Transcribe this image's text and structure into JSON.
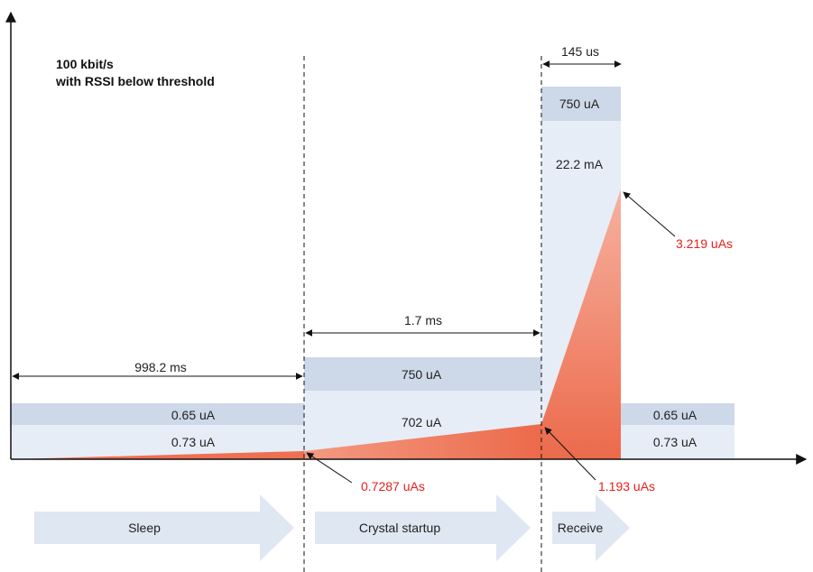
{
  "title": {
    "line1": "100 kbit/s",
    "line2": "with RSSI below threshold"
  },
  "durations": {
    "sleep": "998.2 ms",
    "crystal_startup": "1.7 ms",
    "receive": "145 us"
  },
  "currents": {
    "sleep_top": "0.65 uA",
    "sleep_bottom": "0.73 uA",
    "crystal_top": "750 uA",
    "crystal_bottom": "702 uA",
    "receive_top": "750 uA",
    "receive_bottom": "22.2 mA",
    "after_top": "0.65 uA",
    "after_bottom": "0.73 uA"
  },
  "charges": {
    "sleep": "0.7287 uAs",
    "crystal": "1.193 uAs",
    "receive": "3.219 uAs"
  },
  "phases": {
    "sleep": "Sleep",
    "crystal": "Crystal startup",
    "receive": "Receive"
  },
  "colors": {
    "band_dark": "#cdd8e8",
    "band_light": "#e6edf6",
    "fill_red": "#ee7052",
    "annotation_red": "#e8201c",
    "arrow_phase": "#dfe7f2"
  }
}
